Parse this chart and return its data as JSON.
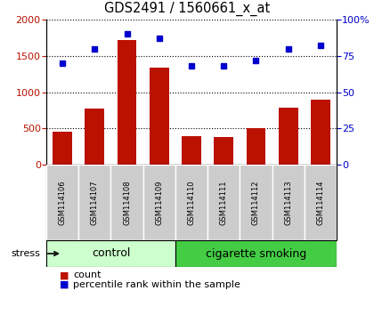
{
  "title": "GDS2491 / 1560661_x_at",
  "samples": [
    "GSM114106",
    "GSM114107",
    "GSM114108",
    "GSM114109",
    "GSM114110",
    "GSM114111",
    "GSM114112",
    "GSM114113",
    "GSM114114"
  ],
  "counts": [
    450,
    775,
    1720,
    1340,
    390,
    375,
    500,
    790,
    900
  ],
  "percentiles": [
    70,
    80,
    90,
    87,
    68,
    68,
    72,
    80,
    82
  ],
  "bar_color": "#bb1100",
  "dot_color": "#0000cc",
  "left_ylim": [
    0,
    2000
  ],
  "right_ylim": [
    0,
    100
  ],
  "left_yticks": [
    0,
    500,
    1000,
    1500,
    2000
  ],
  "right_yticks": [
    0,
    25,
    50,
    75,
    100
  ],
  "right_yticklabels": [
    "0",
    "25",
    "50",
    "75",
    "100%"
  ],
  "control_indices": [
    0,
    1,
    2,
    3
  ],
  "smoking_indices": [
    4,
    5,
    6,
    7,
    8
  ],
  "control_label": "control",
  "smoking_label": "cigarette smoking",
  "stress_label": "stress",
  "group_color_control": "#ccffcc",
  "group_color_smoking": "#44cc44",
  "tick_bg_color": "#cccccc",
  "legend_count_label": "count",
  "legend_pct_label": "percentile rank within the sample",
  "figsize": [
    4.2,
    3.54
  ],
  "dpi": 100
}
